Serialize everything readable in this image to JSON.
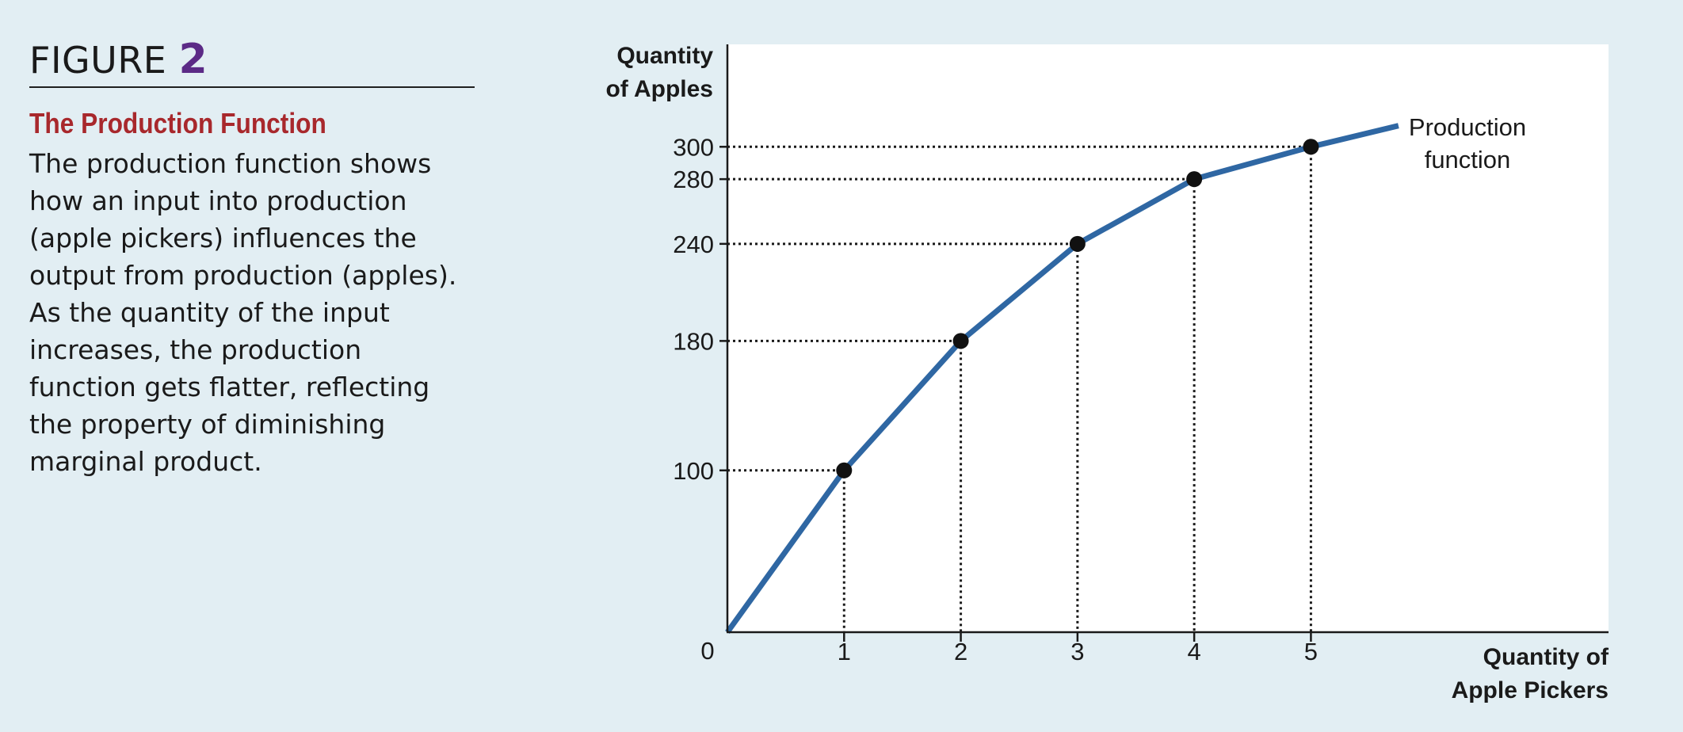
{
  "figure": {
    "label": "FIGURE",
    "number": "2",
    "title": "The Production Function",
    "body": "The production function shows how an input into production (apple pickers) influences the output from production (apples). As the quantity of the input increases, the production function gets flatter, reflecting the property of diminishing marginal product."
  },
  "chart_data": {
    "type": "line",
    "ylabel_lines": [
      "Quantity",
      "of Apples"
    ],
    "xlabel_lines": [
      "Quantity of",
      "Apple Pickers"
    ],
    "series_label_lines": [
      "Production",
      "function"
    ],
    "origin_label": "0",
    "x_ticks": [
      1,
      2,
      3,
      4,
      5
    ],
    "y_ticks": [
      100,
      180,
      240,
      280,
      300
    ],
    "xlim": [
      0,
      7.55
    ],
    "ylim": [
      0,
      363.3
    ],
    "grid": false,
    "series": [
      {
        "x": [
          0,
          1,
          2,
          3,
          4,
          5,
          5.75
        ],
        "y": [
          0,
          100,
          180,
          240,
          280,
          300,
          313
        ],
        "markers_at": [
          1,
          2,
          3,
          4,
          5
        ],
        "color": "#2f67a3"
      }
    ],
    "guide_lines": "dotted from each marked point to both axes"
  }
}
